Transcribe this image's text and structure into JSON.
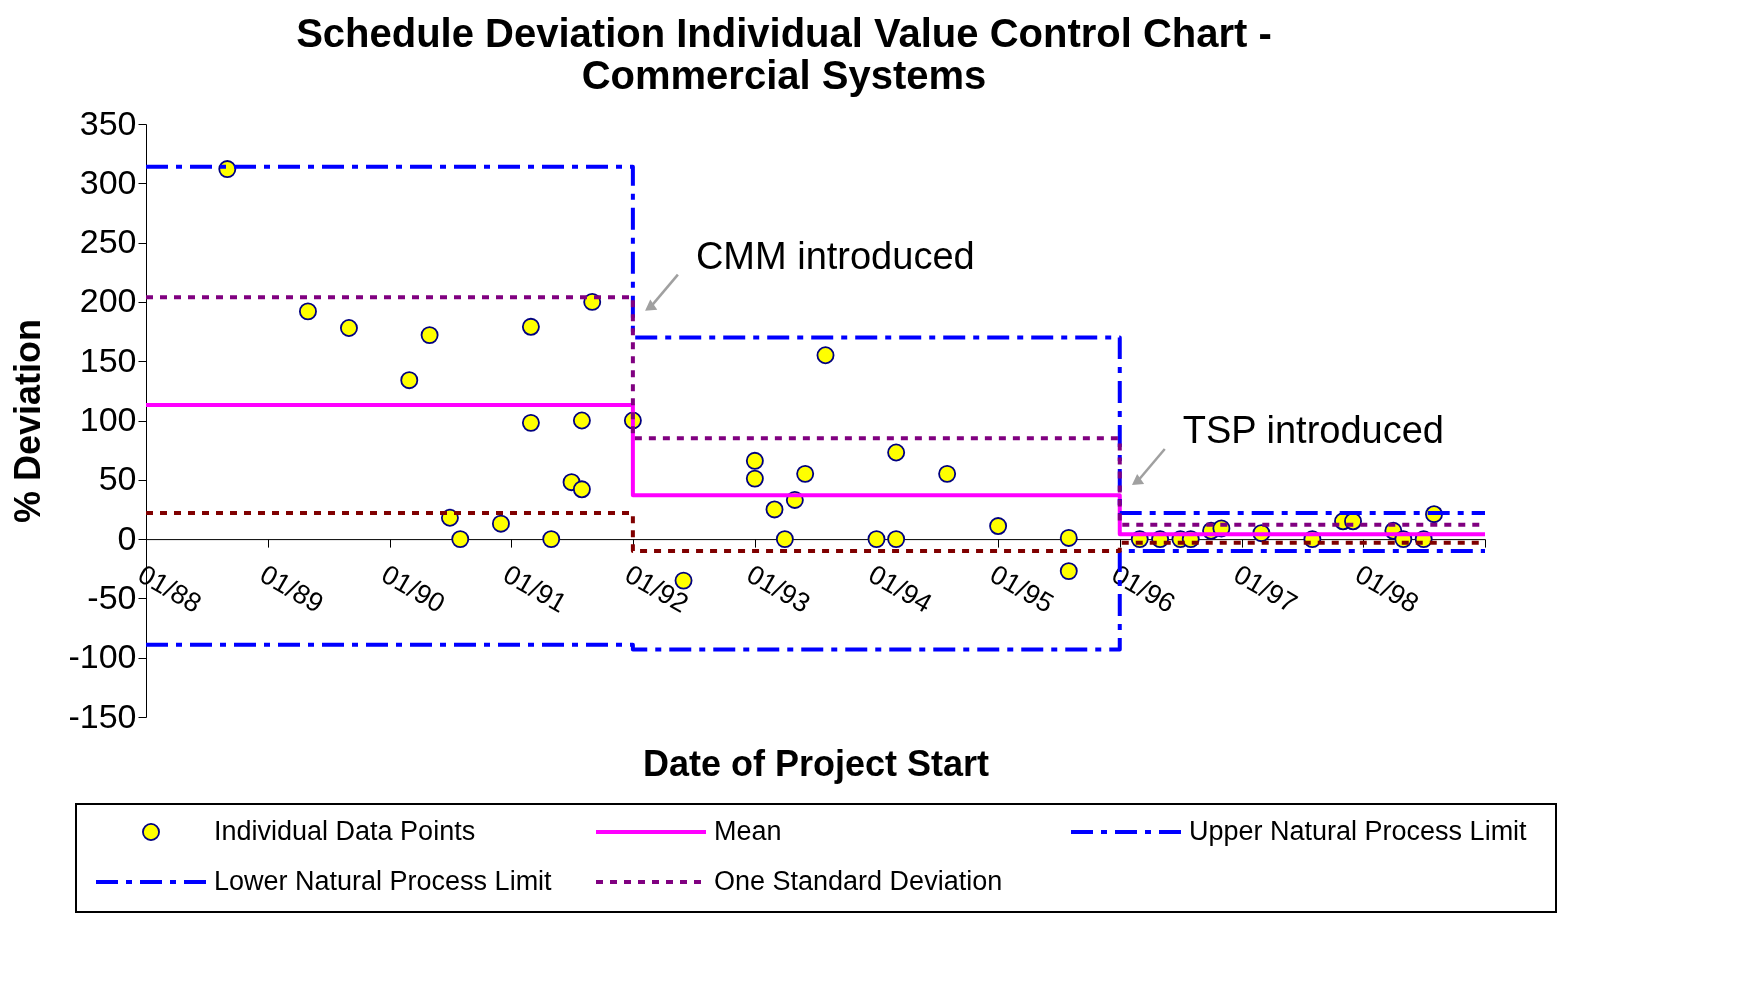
{
  "chart_data": {
    "type": "scatter",
    "title": [
      "Schedule Deviation Individual Value Control Chart -",
      "Commercial Systems"
    ],
    "xlabel": "Date of Project Start",
    "ylabel": "% Deviation",
    "xlim": [
      "1988-01",
      "1999-01"
    ],
    "ylim": [
      -150,
      350
    ],
    "xticks": [
      {
        "value": "1988-01",
        "label": "01/88"
      },
      {
        "value": "1989-01",
        "label": "01/89"
      },
      {
        "value": "1990-01",
        "label": "01/90"
      },
      {
        "value": "1991-01",
        "label": "01/91"
      },
      {
        "value": "1992-01",
        "label": "01/92"
      },
      {
        "value": "1993-01",
        "label": "01/93"
      },
      {
        "value": "1994-01",
        "label": "01/94"
      },
      {
        "value": "1995-01",
        "label": "01/95"
      },
      {
        "value": "1996-01",
        "label": "01/96"
      },
      {
        "value": "1997-01",
        "label": "01/97"
      },
      {
        "value": "1998-01",
        "label": "01/98"
      },
      {
        "value": "1999-01",
        "label": null
      }
    ],
    "yticks": [
      -150,
      -100,
      -50,
      0,
      50,
      100,
      150,
      200,
      250,
      300,
      350
    ],
    "grid": false,
    "legend": "bottom",
    "series": [
      {
        "name": "Individual Data Points",
        "marker": "circle",
        "color": "#ffff00",
        "x": [
          "1988-09",
          "1989-05",
          "1989-09",
          "1990-03",
          "1990-05",
          "1990-07",
          "1990-08",
          "1990-12",
          "1991-03",
          "1991-03",
          "1991-05",
          "1991-07",
          "1991-08",
          "1991-08",
          "1991-09",
          "1992-01",
          "1992-06",
          "1993-01",
          "1993-01",
          "1993-03",
          "1993-04",
          "1993-05",
          "1993-06",
          "1993-08",
          "1994-01",
          "1994-03",
          "1994-03",
          "1994-08",
          "1995-01",
          "1995-08",
          "1995-08",
          "1996-03",
          "1996-05",
          "1996-07",
          "1996-08",
          "1996-10",
          "1996-11",
          "1997-03",
          "1997-08",
          "1997-11",
          "1997-12",
          "1998-04",
          "1998-05",
          "1998-07",
          "1998-08"
        ],
        "values": [
          312,
          192,
          178,
          134,
          172,
          18,
          0,
          13,
          179,
          98,
          0,
          48,
          42,
          100,
          200,
          100,
          -35,
          66,
          51,
          25,
          0,
          33,
          55,
          155,
          0,
          0,
          73,
          55,
          11,
          1,
          -27,
          0,
          0,
          0,
          0,
          7,
          9,
          5,
          0,
          15,
          15,
          7,
          0,
          0,
          21
        ]
      },
      {
        "name": "Mean",
        "type": "line",
        "line_style": "solid",
        "color": "#ff00ff",
        "x": [
          "1988-01",
          "1992-01",
          "1992-01",
          "1996-01",
          "1996-01",
          "1999-01"
        ],
        "values": [
          113,
          113,
          37,
          37,
          4,
          4
        ]
      },
      {
        "name": "Upper Natural Process Limit",
        "type": "line",
        "line_style": "dashed",
        "color": "#0000ff",
        "x": [
          "1988-01",
          "1992-01",
          "1992-01",
          "1996-01",
          "1996-01",
          "1999-01"
        ],
        "values": [
          314,
          314,
          170,
          170,
          22,
          22
        ]
      },
      {
        "name": "Lower Natural Process Limit",
        "type": "line",
        "line_style": "dashed",
        "color": "#0000ff",
        "x": [
          "1988-01",
          "1992-01",
          "1992-01",
          "1996-01",
          "1996-01",
          "1999-01"
        ],
        "values": [
          -89,
          -89,
          -93,
          -93,
          -10,
          -10
        ]
      },
      {
        "name": "One Standard Deviation",
        "type": "line",
        "line_style": "dotted",
        "color": "#800080",
        "x": [
          "1988-01",
          "1992-01",
          "1992-01",
          "1996-01",
          "1996-01",
          "1999-01"
        ],
        "values": [
          204,
          204,
          85,
          85,
          12,
          12
        ]
      },
      {
        "type": "line",
        "line_style": "dotted",
        "color": "#800000",
        "x": [
          "1988-01",
          "1992-01",
          "1992-01",
          "1996-01",
          "1996-01",
          "1999-01"
        ],
        "values": [
          22,
          22,
          -10,
          -10,
          -3,
          -3
        ]
      }
    ],
    "annotations": [
      {
        "text": "CMM introduced",
        "x": "1992-01",
        "y": 196
      },
      {
        "text": "TSP introduced",
        "x": "1996-01",
        "y": 49
      }
    ]
  }
}
